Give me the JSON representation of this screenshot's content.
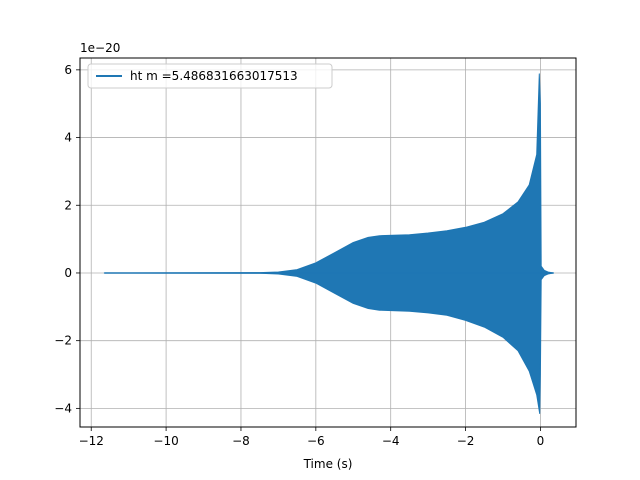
{
  "chart_data": {
    "type": "line",
    "title": "",
    "xlabel": "Time (s)",
    "ylabel": "",
    "y_scale_label": "1e−20",
    "xlim": [
      -12.3,
      0.95
    ],
    "ylim": [
      -4.55,
      6.35
    ],
    "xticks": [
      -12,
      -10,
      -8,
      -6,
      -4,
      -2,
      0
    ],
    "xtick_labels": [
      "−12",
      "−10",
      "−8",
      "−6",
      "−4",
      "−2",
      "0"
    ],
    "yticks": [
      -4,
      -2,
      0,
      2,
      4,
      6
    ],
    "ytick_labels": [
      "−4",
      "−2",
      "0",
      "2",
      "4",
      "6"
    ],
    "grid": true,
    "legend_position": "top-left",
    "series": [
      {
        "name": "ht m =5.486831663017513",
        "color": "#1f77b4",
        "x_range": [
          -11.65,
          0.35
        ],
        "upper_envelope": [
          [
            -11.65,
            0.0
          ],
          [
            -7.5,
            0.01
          ],
          [
            -7.0,
            0.03
          ],
          [
            -6.5,
            0.1
          ],
          [
            -6.0,
            0.3
          ],
          [
            -5.5,
            0.6
          ],
          [
            -5.0,
            0.9
          ],
          [
            -4.6,
            1.05
          ],
          [
            -4.3,
            1.1
          ],
          [
            -3.5,
            1.13
          ],
          [
            -3.0,
            1.18
          ],
          [
            -2.5,
            1.25
          ],
          [
            -2.0,
            1.35
          ],
          [
            -1.5,
            1.5
          ],
          [
            -1.0,
            1.75
          ],
          [
            -0.6,
            2.1
          ],
          [
            -0.3,
            2.6
          ],
          [
            -0.1,
            3.5
          ],
          [
            -0.03,
            5.88
          ],
          [
            0.0,
            5.0
          ],
          [
            0.02,
            0.2
          ],
          [
            0.1,
            0.08
          ],
          [
            0.2,
            0.03
          ],
          [
            0.35,
            0.0
          ]
        ],
        "lower_envelope": [
          [
            -11.65,
            0.0
          ],
          [
            -7.5,
            -0.01
          ],
          [
            -7.0,
            -0.03
          ],
          [
            -6.5,
            -0.1
          ],
          [
            -6.0,
            -0.3
          ],
          [
            -5.5,
            -0.6
          ],
          [
            -5.0,
            -0.9
          ],
          [
            -4.6,
            -1.05
          ],
          [
            -4.3,
            -1.1
          ],
          [
            -3.5,
            -1.13
          ],
          [
            -3.0,
            -1.18
          ],
          [
            -2.5,
            -1.25
          ],
          [
            -2.0,
            -1.4
          ],
          [
            -1.5,
            -1.6
          ],
          [
            -1.0,
            -1.9
          ],
          [
            -0.6,
            -2.3
          ],
          [
            -0.3,
            -2.9
          ],
          [
            -0.1,
            -3.6
          ],
          [
            -0.02,
            -4.15
          ],
          [
            0.0,
            -3.0
          ],
          [
            0.02,
            -0.2
          ],
          [
            0.1,
            -0.08
          ],
          [
            0.2,
            -0.03
          ],
          [
            0.35,
            0.0
          ]
        ]
      }
    ]
  }
}
